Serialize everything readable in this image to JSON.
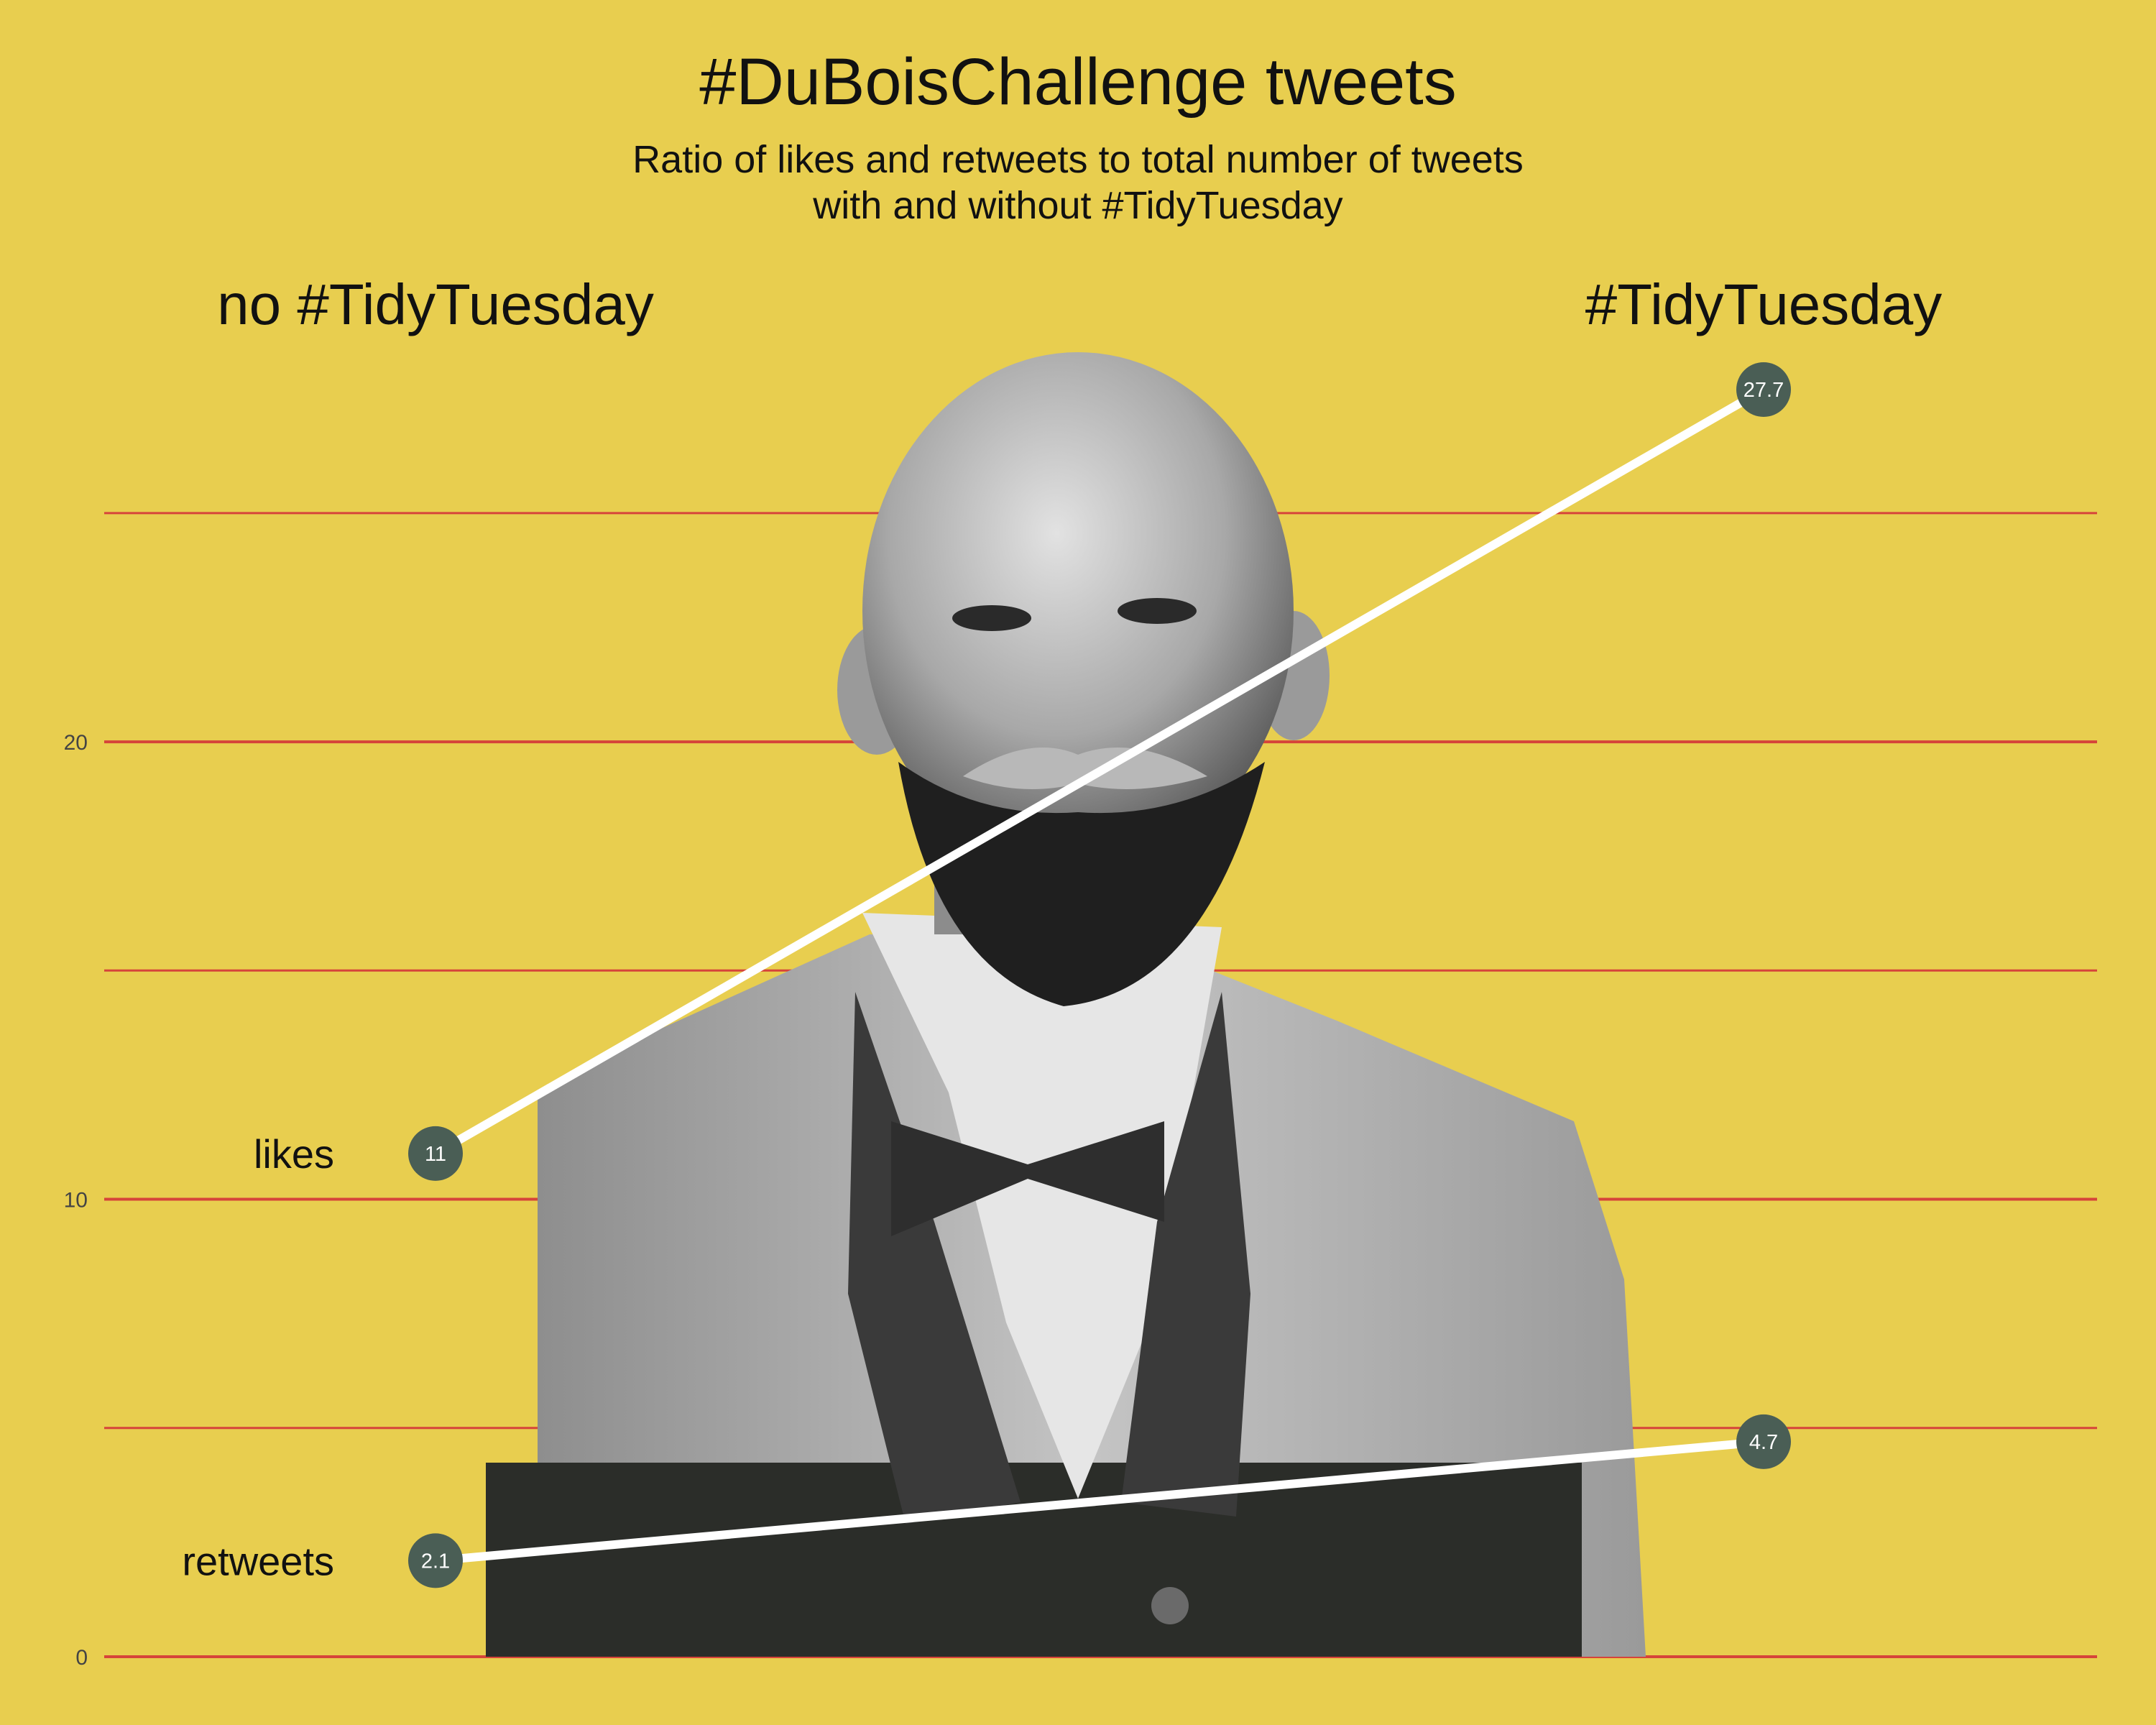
{
  "header": {
    "title": "#DuBoisChallenge tweets",
    "subtitle_line1": "Ratio of likes and retweets to total number of tweets",
    "subtitle_line2": "with and without #TidyTuesday"
  },
  "colors": {
    "background": "#e8ce4f",
    "gridline": "#d6443a",
    "dot": "#4a5e55",
    "line": "#ffffff"
  },
  "chart_data": {
    "type": "line",
    "categories": [
      "no #TidyTuesday",
      "#TidyTuesday"
    ],
    "series": [
      {
        "name": "likes",
        "values": [
          11,
          27.7
        ],
        "labels": [
          "11",
          "27.7"
        ]
      },
      {
        "name": "retweets",
        "values": [
          2.1,
          4.7
        ],
        "labels": [
          "2.1",
          "4.7"
        ]
      }
    ],
    "y_ticks": [
      0,
      10,
      20
    ],
    "ylim": [
      0,
      27.7
    ],
    "grid": true,
    "background_image": "portrait of W. E. B. Du Bois"
  }
}
